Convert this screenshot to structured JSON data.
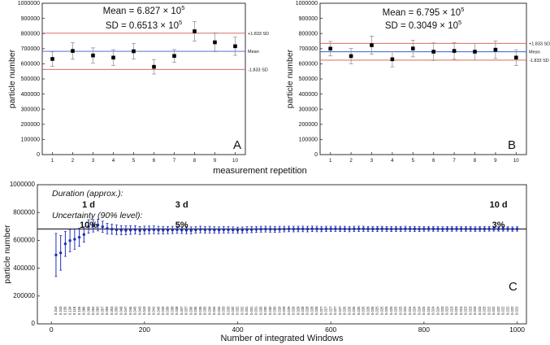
{
  "chart_data": [
    {
      "id": "A",
      "type": "scatter",
      "panel_label": "A",
      "title_line1": "Mean = 6.827 × 10",
      "title_line1_exp": "5",
      "title_line2": "SD = 0.6513 × 10",
      "title_line2_exp": "5",
      "xlabel": "measurement repetition",
      "ylabel": "particle number",
      "xlim": [
        0.5,
        10.5
      ],
      "ylim": [
        0,
        1000000
      ],
      "xticks": [
        1,
        2,
        3,
        4,
        5,
        6,
        7,
        8,
        9,
        10
      ],
      "yticks": [
        0,
        100000,
        200000,
        300000,
        400000,
        500000,
        600000,
        700000,
        800000,
        900000,
        1000000
      ],
      "x": [
        1,
        2,
        3,
        4,
        5,
        6,
        7,
        8,
        9,
        10
      ],
      "values": [
        632000,
        685000,
        655000,
        641000,
        683000,
        580000,
        652000,
        815000,
        742000,
        716000
      ],
      "errors": [
        48000,
        55000,
        50000,
        52000,
        52000,
        48000,
        42000,
        65000,
        62000,
        60000
      ],
      "mean": 682700,
      "upper_sd": 802000,
      "lower_sd": 563000,
      "upper_label": "+1.833 SD",
      "mean_label": "Mean",
      "lower_label": "-1.833 SD"
    },
    {
      "id": "B",
      "type": "scatter",
      "panel_label": "B",
      "title_line1": "Mean = 6.795 × 10",
      "title_line1_exp": "5",
      "title_line2": "SD = 0.3049 × 10",
      "title_line2_exp": "5",
      "xlabel": "",
      "ylabel": "particle number",
      "xlim": [
        0.5,
        10.5
      ],
      "ylim": [
        0,
        1000000
      ],
      "xticks": [
        1,
        2,
        3,
        4,
        5,
        6,
        7,
        8,
        9,
        10
      ],
      "yticks": [
        0,
        100000,
        200000,
        300000,
        400000,
        500000,
        600000,
        700000,
        800000,
        900000,
        1000000
      ],
      "x": [
        1,
        2,
        3,
        4,
        5,
        6,
        7,
        8,
        9,
        10
      ],
      "values": [
        700000,
        651000,
        723000,
        630000,
        701000,
        680000,
        685000,
        680000,
        693000,
        641000
      ],
      "errors": [
        48000,
        50000,
        60000,
        50000,
        55000,
        58000,
        55000,
        55000,
        58000,
        52000
      ],
      "mean": 679500,
      "upper_sd": 735000,
      "lower_sd": 624000,
      "upper_label": "+1.833 SD",
      "mean_label": "Mean",
      "lower_label": "-1.833 SD"
    },
    {
      "id": "C",
      "type": "scatter",
      "panel_label": "C",
      "xlabel": "Number of integrated Windows",
      "ylabel": "particle number",
      "xlim": [
        -30,
        1020
      ],
      "ylim": [
        0,
        1000000
      ],
      "xticks": [
        0,
        200,
        400,
        600,
        800,
        1000
      ],
      "yticks": [
        0,
        200000,
        400000,
        600000,
        800000,
        1000000
      ],
      "mean": 682000,
      "duration_heading": "Duration (approx.):",
      "uncertainty_heading": "Uncertainty (90% level):",
      "annotations": [
        {
          "x": 80,
          "duration": "1 d",
          "uncertainty": "10%"
        },
        {
          "x": 280,
          "duration": "3 d",
          "uncertainty": "5%"
        },
        {
          "x": 960,
          "duration": "10 d",
          "uncertainty": "3%"
        }
      ],
      "x": [
        10,
        20,
        30,
        40,
        50,
        60,
        70,
        80,
        90,
        100,
        110,
        120,
        130,
        140,
        150,
        160,
        170,
        180,
        190,
        200,
        210,
        220,
        230,
        240,
        250,
        260,
        270,
        280,
        290,
        300,
        310,
        320,
        330,
        340,
        350,
        360,
        370,
        380,
        390,
        400,
        410,
        420,
        430,
        440,
        450,
        460,
        470,
        480,
        490,
        500,
        510,
        520,
        530,
        540,
        550,
        560,
        570,
        580,
        590,
        600,
        610,
        620,
        630,
        640,
        650,
        660,
        670,
        680,
        690,
        700,
        710,
        720,
        730,
        740,
        750,
        760,
        770,
        780,
        790,
        800,
        810,
        820,
        830,
        840,
        850,
        860,
        870,
        880,
        890,
        900,
        910,
        920,
        930,
        940,
        950,
        960,
        970,
        980,
        990,
        1000
      ],
      "values": [
        495000,
        510000,
        575000,
        598000,
        608000,
        622000,
        642000,
        700000,
        705000,
        710000,
        698000,
        685000,
        680000,
        676000,
        673000,
        672000,
        674000,
        676000,
        671000,
        673000,
        675000,
        676000,
        674000,
        673000,
        674000,
        675000,
        676000,
        674000,
        673000,
        672000,
        675000,
        678000,
        676000,
        677000,
        675000,
        674000,
        676000,
        676000,
        675000,
        673000,
        674000,
        676000,
        677000,
        679000,
        680000,
        681000,
        680000,
        679000,
        680000,
        681000,
        682000,
        681000,
        682000,
        682000,
        681000,
        683000,
        682000,
        681000,
        682000,
        682000,
        683000,
        682000,
        682000,
        681000,
        682000,
        683000,
        683000,
        682000,
        682000,
        682000,
        683000,
        682000,
        681000,
        682000,
        682000,
        683000,
        682000,
        682000,
        681000,
        682000,
        683000,
        682000,
        682000,
        681000,
        682000,
        682000,
        683000,
        682000,
        682000,
        682000,
        681000,
        682000,
        682000,
        683000,
        682000,
        682000,
        682000,
        682000,
        681000,
        682000
      ],
      "errors": [
        155000,
        125000,
        90000,
        80000,
        72000,
        65000,
        55000,
        48000,
        45000,
        42000,
        40000,
        38000,
        36000,
        34000,
        33000,
        32000,
        31000,
        30000,
        29000,
        29000,
        28000,
        28000,
        27000,
        27000,
        26000,
        26000,
        26000,
        25000,
        25000,
        25000,
        24000,
        24000,
        24000,
        24000,
        23000,
        23000,
        23000,
        23000,
        22000,
        22000,
        22000,
        22000,
        22000,
        21000,
        21000,
        21000,
        21000,
        21000,
        21000,
        20000,
        20000,
        20000,
        20000,
        20000,
        20000,
        20000,
        20000,
        19000,
        19000,
        19000,
        19000,
        19000,
        19000,
        19000,
        19000,
        19000,
        19000,
        18000,
        18000,
        18000,
        18000,
        18000,
        18000,
        18000,
        18000,
        18000,
        18000,
        18000,
        18000,
        17000,
        17000,
        17000,
        17000,
        17000,
        17000,
        17000,
        17000,
        17000,
        17000,
        17000,
        17000,
        17000,
        17000,
        17000,
        16000,
        16000,
        16000,
        16000,
        16000,
        16000
      ],
      "rel_uncertainty": [
        "0.315",
        "0.243",
        "0.156",
        "0.134",
        "0.118",
        "0.105",
        "0.086",
        "0.069",
        "0.064",
        "0.060",
        "0.057",
        "0.055",
        "0.053",
        "0.050",
        "0.049",
        "0.047",
        "0.046",
        "0.045",
        "0.043",
        "0.043",
        "0.042",
        "0.041",
        "0.040",
        "0.040",
        "0.039",
        "0.038",
        "0.038",
        "0.037",
        "0.037",
        "0.036",
        "0.036",
        "0.035",
        "0.035",
        "0.034",
        "0.034",
        "0.034",
        "0.033",
        "0.033",
        "0.032",
        "0.032",
        "0.032",
        "0.031",
        "0.031",
        "0.031",
        "0.030",
        "0.030",
        "0.030",
        "0.030",
        "0.029",
        "0.029",
        "0.029",
        "0.029",
        "0.029",
        "0.028",
        "0.028",
        "0.028",
        "0.028",
        "0.027",
        "0.027",
        "0.027",
        "0.027",
        "0.027",
        "0.026",
        "0.026",
        "0.026",
        "0.026",
        "0.026",
        "0.026",
        "0.025",
        "0.025",
        "0.025",
        "0.025",
        "0.025",
        "0.025",
        "0.025",
        "0.024",
        "0.024",
        "0.024",
        "0.024",
        "0.024",
        "0.024",
        "0.024",
        "0.024",
        "0.023",
        "0.023",
        "0.023",
        "0.023",
        "0.023",
        "0.023",
        "0.023",
        "0.023",
        "0.023",
        "0.023",
        "0.022",
        "0.022",
        "0.022",
        "0.022",
        "0.022",
        "0.022",
        "0.022"
      ]
    }
  ]
}
